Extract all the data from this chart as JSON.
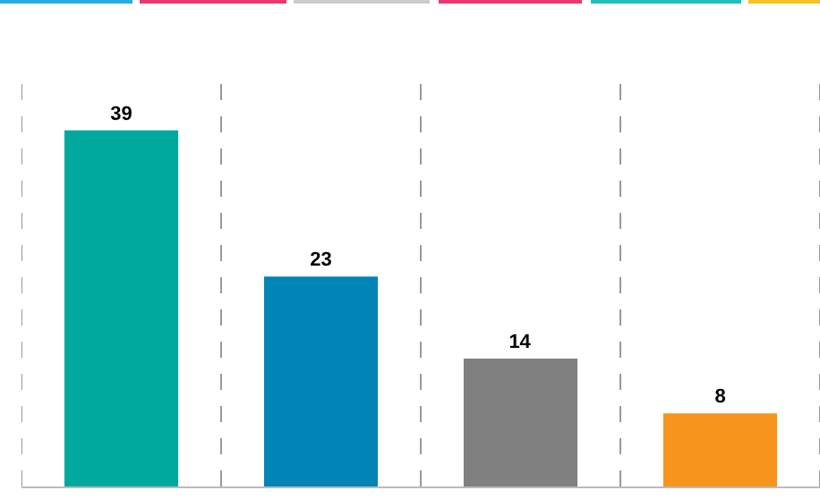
{
  "chart_data": {
    "type": "bar",
    "categories": [
      null,
      null,
      null,
      null
    ],
    "values": [
      39,
      23,
      14,
      8
    ],
    "colors": [
      "#00a99d",
      "#0085b6",
      "#808080",
      "#f7941d"
    ],
    "data_labels": true,
    "grid": "x"
  }
}
